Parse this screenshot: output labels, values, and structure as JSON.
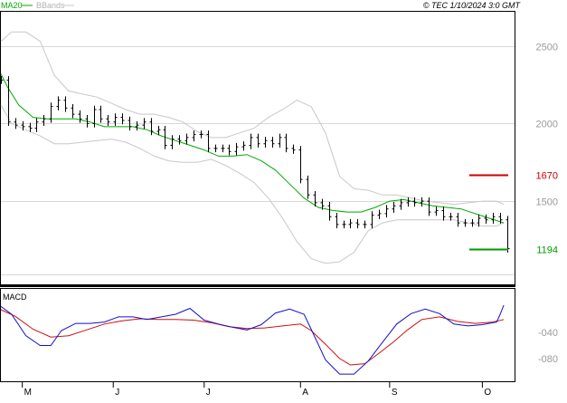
{
  "header": {
    "ma_label": "MA20",
    "bbands_label": "BBands",
    "credit": "© TEC 1/10/2024 3:0 GMT"
  },
  "macd_label": "MACD",
  "markers": {
    "resistance": {
      "label": "1670",
      "value": 16.7,
      "color": "#cc0000"
    },
    "support": {
      "label": "1194",
      "value": 11.94,
      "color": "#009900"
    }
  },
  "colors": {
    "ma": "#00aa00",
    "bbands": "#c8c8c8",
    "price": "#000000",
    "macd": "#1010cc",
    "signal": "#cc1010",
    "grid": "#d8d8d8"
  },
  "chart_data": [
    {
      "type": "line",
      "title": "",
      "y_axis_side": "right",
      "ylim": [
        9.7,
        27.2
      ],
      "ytick_labels": [
        "2500",
        "2000",
        "1500"
      ],
      "ytick_values": [
        25,
        20,
        15
      ],
      "months": [
        "M",
        "J",
        "J",
        "A",
        "S",
        "O"
      ],
      "month_positions": [
        7,
        32.5,
        58,
        85,
        110,
        136
      ],
      "x_range": [
        1,
        143
      ],
      "series": [
        {
          "name": "MA20",
          "x": [
            1,
            3,
            6,
            10,
            14,
            18,
            22,
            26,
            30,
            34,
            38,
            42,
            46,
            50,
            54,
            58,
            62,
            66,
            70,
            74,
            78,
            82,
            86,
            90,
            94,
            98,
            102,
            106,
            110,
            114,
            118,
            122,
            126,
            130,
            134,
            138,
            142
          ],
          "values": [
            23.2,
            22.3,
            21.2,
            20.4,
            20.3,
            20.3,
            20.3,
            20.1,
            19.8,
            19.8,
            19.8,
            19.6,
            19.2,
            18.9,
            18.6,
            18.3,
            17.9,
            17.9,
            18.0,
            17.6,
            17.0,
            16.1,
            15.2,
            14.6,
            14.4,
            14.3,
            14.3,
            14.6,
            15.0,
            15.1,
            14.9,
            14.7,
            14.6,
            14.5,
            14.2,
            13.9,
            13.6
          ]
        },
        {
          "name": "BBands upper",
          "x": [
            1,
            4,
            8,
            12,
            16,
            20,
            24,
            28,
            32,
            36,
            40,
            44,
            48,
            52,
            56,
            60,
            64,
            68,
            72,
            76,
            80,
            84,
            88,
            92,
            96,
            100,
            104,
            108,
            112,
            116,
            120,
            124,
            128,
            132,
            136,
            140,
            142
          ],
          "values": [
            25.3,
            25.9,
            25.9,
            25.3,
            23.1,
            22.1,
            21.9,
            21.7,
            21.3,
            20.9,
            20.6,
            20.6,
            20.4,
            20.1,
            19.5,
            19.1,
            19.1,
            19.4,
            19.7,
            20.4,
            20.9,
            21.5,
            21.1,
            19.4,
            16.6,
            15.8,
            15.7,
            15.4,
            15.4,
            15.2,
            15.0,
            14.9,
            14.8,
            14.9,
            15.0,
            15.0,
            14.8
          ]
        },
        {
          "name": "BBands lower",
          "x": [
            1,
            4,
            8,
            12,
            16,
            20,
            24,
            28,
            32,
            36,
            40,
            44,
            48,
            52,
            56,
            60,
            64,
            68,
            72,
            76,
            80,
            84,
            88,
            92,
            96,
            100,
            104,
            108,
            112,
            116,
            120,
            124,
            128,
            132,
            136,
            140,
            142
          ],
          "values": [
            21.2,
            20.0,
            19.6,
            19.2,
            18.7,
            18.7,
            18.8,
            18.9,
            19.0,
            18.8,
            18.4,
            17.9,
            17.6,
            17.5,
            17.5,
            17.7,
            17.3,
            16.8,
            16.2,
            15.2,
            13.9,
            12.4,
            11.3,
            11.0,
            11.1,
            11.7,
            13.1,
            13.6,
            13.8,
            13.8,
            13.8,
            13.8,
            13.8,
            13.6,
            13.4,
            13.4,
            13.6
          ]
        },
        {
          "name": "Price",
          "x": [
            1,
            3,
            5,
            7,
            9,
            11,
            13,
            15,
            17,
            19,
            21,
            23,
            25,
            27,
            29,
            31,
            33,
            35,
            37,
            39,
            41,
            43,
            45,
            47,
            49,
            51,
            53,
            55,
            57,
            59,
            61,
            63,
            65,
            67,
            69,
            71,
            73,
            75,
            77,
            79,
            81,
            83,
            85,
            87,
            89,
            91,
            93,
            95,
            97,
            99,
            101,
            103,
            105,
            107,
            109,
            111,
            113,
            115,
            117,
            119,
            121,
            123,
            125,
            127,
            129,
            131,
            133,
            135,
            137,
            139,
            141,
            143
          ],
          "values": [
            22.8,
            20.1,
            19.9,
            19.8,
            19.7,
            20.1,
            20.3,
            21.1,
            21.5,
            21.0,
            20.6,
            20.3,
            20.0,
            20.9,
            20.3,
            20.1,
            20.4,
            20.2,
            19.8,
            19.9,
            20.1,
            19.5,
            19.6,
            18.6,
            19.0,
            18.9,
            19.1,
            19.3,
            19.3,
            18.4,
            18.4,
            18.4,
            18.2,
            18.5,
            18.6,
            19.1,
            18.7,
            18.9,
            18.7,
            19.1,
            18.4,
            18.3,
            16.4,
            15.4,
            14.9,
            14.7,
            14.0,
            13.5,
            13.5,
            13.6,
            13.5,
            13.5,
            14.1,
            14.2,
            14.5,
            14.7,
            14.9,
            15.0,
            14.9,
            15.0,
            14.3,
            14.4,
            14.0,
            14.0,
            13.6,
            13.6,
            13.6,
            13.9,
            13.8,
            14.0,
            13.8,
            11.94
          ]
        }
      ]
    },
    {
      "type": "line",
      "title": "MACD",
      "y_axis_side": "right",
      "ylim": [
        -115,
        27
      ],
      "ytick_labels": [
        "-040",
        "-080"
      ],
      "ytick_values": [
        -40,
        -80
      ],
      "series": [
        {
          "name": "MACD",
          "x": [
            1,
            4,
            8,
            12,
            15,
            18,
            22,
            26,
            30,
            34,
            38,
            42,
            46,
            50,
            54,
            58,
            62,
            66,
            70,
            74,
            78,
            82,
            86,
            88,
            92,
            96,
            100,
            104,
            108,
            112,
            116,
            120,
            124,
            128,
            132,
            136,
            140,
            141,
            142
          ],
          "values": [
            0,
            -12,
            -45,
            -60,
            -60,
            -37,
            -26,
            -26,
            -24,
            -16,
            -16,
            -20,
            -16,
            -12,
            -3,
            -21,
            -27,
            -32,
            -36,
            -28,
            -10,
            -4,
            -12,
            -35,
            -82,
            -104,
            -104,
            -84,
            -55,
            -27,
            -11,
            -4,
            -11,
            -27,
            -30,
            -28,
            -24,
            -12,
            2
          ]
        },
        {
          "name": "Signal",
          "x": [
            1,
            5,
            10,
            15,
            20,
            25,
            30,
            35,
            40,
            45,
            50,
            55,
            60,
            65,
            70,
            75,
            80,
            85,
            88,
            92,
            96,
            99,
            103,
            107,
            111,
            115,
            119,
            124,
            129,
            134,
            139,
            142
          ],
          "values": [
            -5,
            -15,
            -35,
            -47,
            -45,
            -36,
            -27,
            -22,
            -19,
            -20,
            -20,
            -21,
            -25,
            -31,
            -34,
            -33,
            -30,
            -27,
            -37,
            -58,
            -80,
            -90,
            -88,
            -72,
            -55,
            -36,
            -20,
            -16,
            -23,
            -26,
            -24,
            -20
          ]
        }
      ]
    }
  ]
}
